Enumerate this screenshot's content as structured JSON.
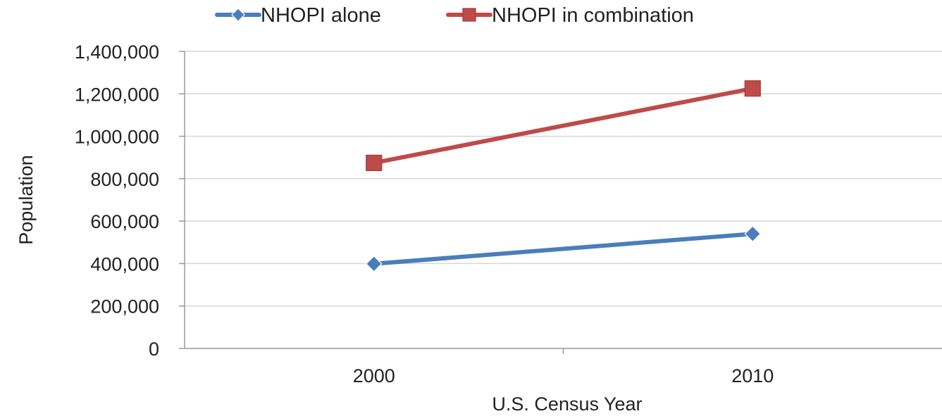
{
  "chart_data": {
    "type": "line",
    "categories": [
      "2000",
      "2010"
    ],
    "series": [
      {
        "name": "NHOPI alone",
        "values": [
          398835,
          540013
        ],
        "color": "#4a7ebb",
        "marker": "diamond"
      },
      {
        "name": "NHOPI in combination",
        "values": [
          874414,
          1225195
        ],
        "color": "#be4b48",
        "marker": "square"
      }
    ],
    "xlabel": "U.S. Census Year",
    "ylabel": "Population",
    "ylim": [
      0,
      1400000
    ],
    "yticks": [
      0,
      200000,
      400000,
      600000,
      800000,
      1000000,
      1200000,
      1400000
    ],
    "ytick_labels": [
      "0",
      "200,000",
      "400,000",
      "600,000",
      "800,000",
      "1,000,000",
      "1,200,000",
      "1,400,000"
    ],
    "grid": true,
    "legend_position": "top-center"
  }
}
